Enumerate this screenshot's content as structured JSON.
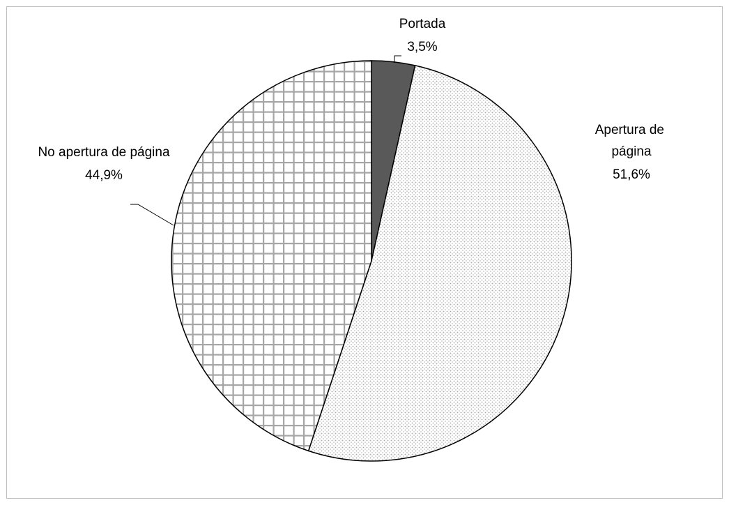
{
  "chart_data": {
    "type": "pie",
    "categories": [
      "Portada",
      "Apertura de página",
      "No apertura de página"
    ],
    "values": [
      3.5,
      51.6,
      44.9
    ],
    "value_labels": [
      "3,5%",
      "51,6%",
      "44,9%"
    ],
    "colors": [
      "#595959",
      "#bfbfbf",
      "#a6a6a6"
    ],
    "patterns": [
      "solid",
      "dots",
      "grid"
    ]
  }
}
